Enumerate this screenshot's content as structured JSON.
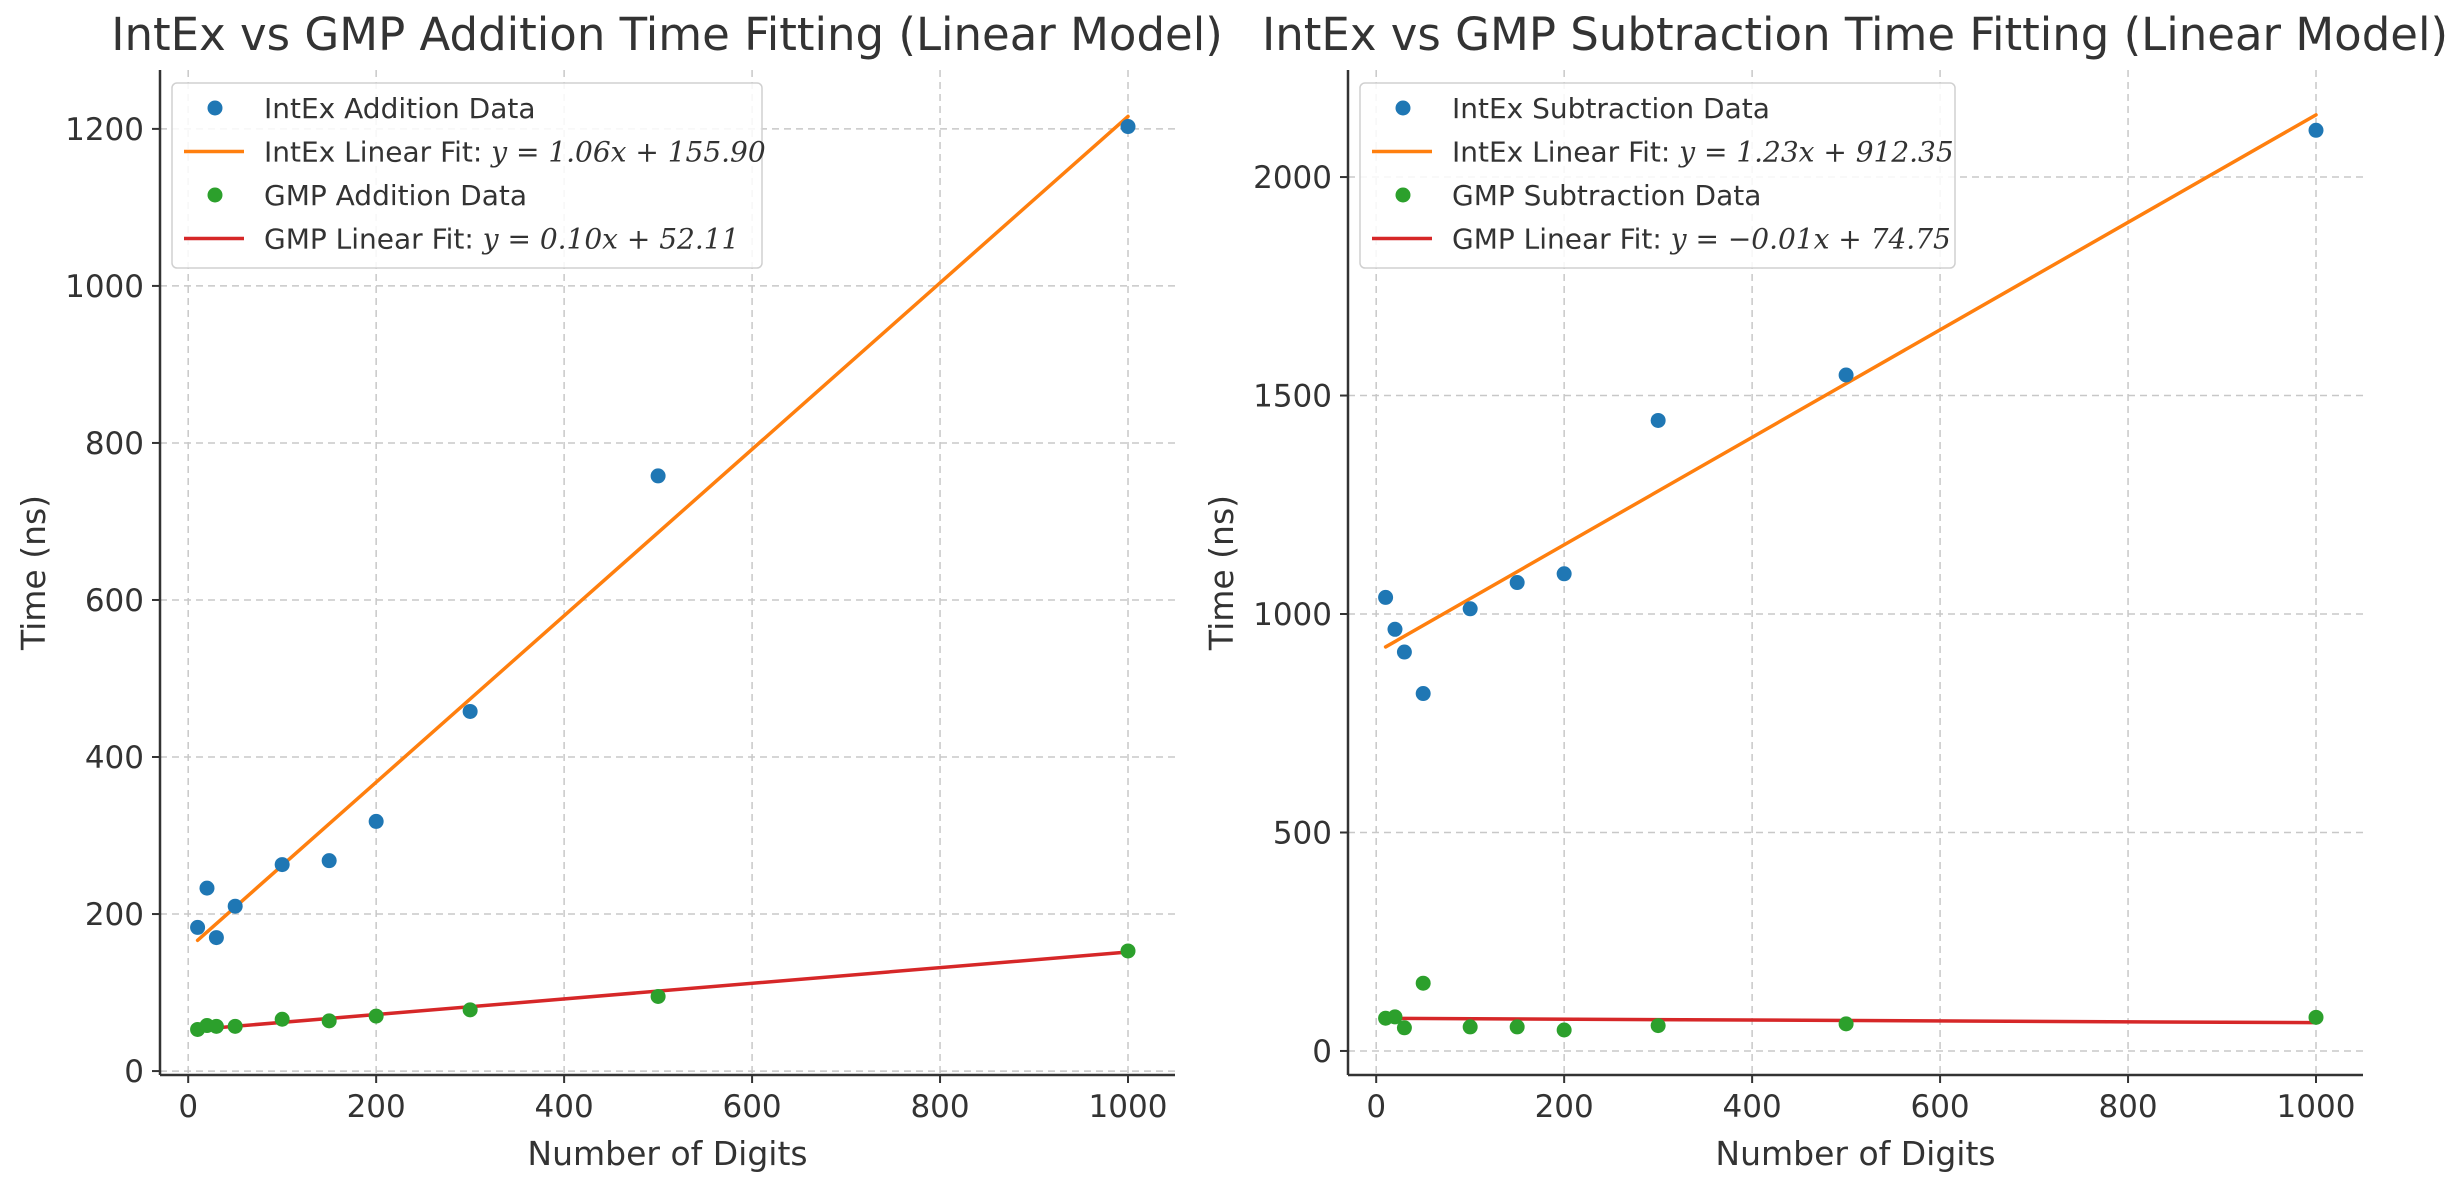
{
  "chart_data": [
    {
      "type": "scatter",
      "title": "IntEx vs GMP Addition Time Fitting (Linear Model)",
      "xlabel": "Number of Digits",
      "ylabel": "Time (ns)",
      "xlim": [
        -30,
        1050
      ],
      "ylim": [
        -5,
        1275
      ],
      "xticks": [
        0,
        200,
        400,
        600,
        800,
        1000
      ],
      "yticks": [
        0,
        200,
        400,
        600,
        800,
        1000,
        1200
      ],
      "grid": true,
      "legend_position": "top-left",
      "series": [
        {
          "name": "IntEx Addition Data",
          "kind": "scatter",
          "color": "#1f77b4",
          "x": [
            10,
            20,
            30,
            50,
            100,
            150,
            200,
            300,
            500,
            1000
          ],
          "y": [
            183,
            233,
            170,
            210,
            263,
            268,
            318,
            458,
            758,
            1203
          ]
        },
        {
          "name": "IntEx Linear Fit: ",
          "equation": "y = 1.06x + 155.90",
          "kind": "line",
          "color": "#ff7f0e",
          "slope": 1.06,
          "intercept": 155.9,
          "x_range": [
            10,
            1000
          ]
        },
        {
          "name": "GMP Addition Data",
          "kind": "scatter",
          "color": "#2ca02c",
          "x": [
            10,
            20,
            30,
            50,
            100,
            150,
            200,
            300,
            500,
            1000
          ],
          "y": [
            53,
            58,
            57,
            57,
            66,
            64,
            70,
            78,
            95,
            153
          ]
        },
        {
          "name": "GMP Linear Fit: ",
          "equation": "y = 0.10x + 52.11",
          "kind": "line",
          "color": "#d62728",
          "slope": 0.0995,
          "intercept": 52.11,
          "x_range": [
            10,
            1000
          ]
        }
      ]
    },
    {
      "type": "scatter",
      "title": "IntEx vs GMP Subtraction Time Fitting (Linear Model)",
      "xlabel": "Number of Digits",
      "ylabel": "Time (ns)",
      "xlim": [
        -30,
        1050
      ],
      "ylim": [
        -55,
        2245
      ],
      "xticks": [
        0,
        200,
        400,
        600,
        800,
        1000
      ],
      "yticks": [
        0,
        500,
        1000,
        1500,
        2000
      ],
      "grid": true,
      "legend_position": "top-left",
      "series": [
        {
          "name": "IntEx Subtraction Data",
          "kind": "scatter",
          "color": "#1f77b4",
          "x": [
            10,
            20,
            30,
            50,
            100,
            150,
            200,
            300,
            500,
            1000
          ],
          "y": [
            1038,
            965,
            913,
            818,
            1012,
            1072,
            1092,
            1443,
            1547,
            2107
          ]
        },
        {
          "name": "IntEx Linear Fit: ",
          "equation": "y = 1.23x + 912.35",
          "kind": "line",
          "color": "#ff7f0e",
          "slope": 1.23,
          "intercept": 912.35,
          "x_range": [
            10,
            1000
          ]
        },
        {
          "name": "GMP Subtraction Data",
          "kind": "scatter",
          "color": "#2ca02c",
          "x": [
            10,
            20,
            30,
            50,
            100,
            150,
            200,
            300,
            500,
            1000
          ],
          "y": [
            75,
            78,
            53,
            155,
            55,
            55,
            48,
            58,
            62,
            77
          ]
        },
        {
          "name": "GMP Linear Fit: ",
          "equation": "y = −0.01x + 74.75",
          "kind": "line",
          "color": "#d62728",
          "slope": -0.01,
          "intercept": 74.75,
          "x_range": [
            10,
            1000
          ]
        }
      ]
    }
  ]
}
